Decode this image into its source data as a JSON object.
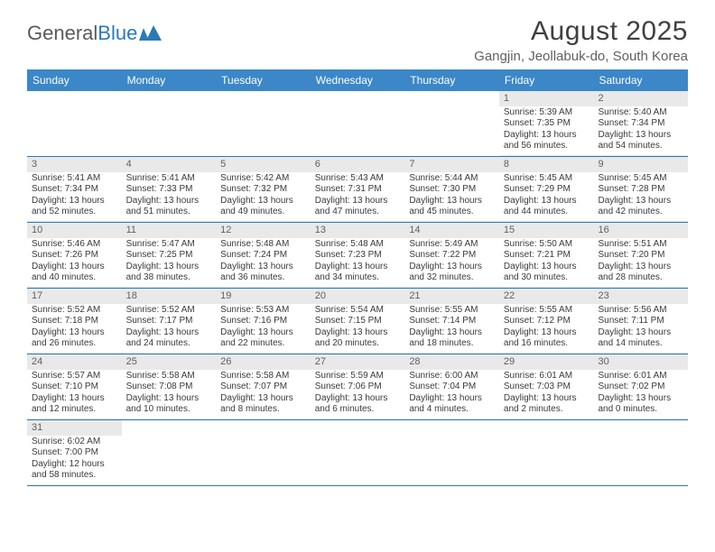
{
  "logo": {
    "text1": "General",
    "text2": "Blue"
  },
  "title": "August 2025",
  "location": "Gangjin, Jeollabuk-do, South Korea",
  "colors": {
    "header_bg": "#3b87c8",
    "header_text": "#ffffff",
    "border": "#2a7ab9",
    "shaded": "#e9e9e9",
    "text": "#3a3a3a"
  },
  "dayNames": [
    "Sunday",
    "Monday",
    "Tuesday",
    "Wednesday",
    "Thursday",
    "Friday",
    "Saturday"
  ],
  "weeks": [
    [
      null,
      null,
      null,
      null,
      null,
      {
        "n": "1",
        "sr": "Sunrise: 5:39 AM",
        "ss": "Sunset: 7:35 PM",
        "d1": "Daylight: 13 hours",
        "d2": "and 56 minutes."
      },
      {
        "n": "2",
        "sr": "Sunrise: 5:40 AM",
        "ss": "Sunset: 7:34 PM",
        "d1": "Daylight: 13 hours",
        "d2": "and 54 minutes."
      }
    ],
    [
      {
        "n": "3",
        "sr": "Sunrise: 5:41 AM",
        "ss": "Sunset: 7:34 PM",
        "d1": "Daylight: 13 hours",
        "d2": "and 52 minutes."
      },
      {
        "n": "4",
        "sr": "Sunrise: 5:41 AM",
        "ss": "Sunset: 7:33 PM",
        "d1": "Daylight: 13 hours",
        "d2": "and 51 minutes."
      },
      {
        "n": "5",
        "sr": "Sunrise: 5:42 AM",
        "ss": "Sunset: 7:32 PM",
        "d1": "Daylight: 13 hours",
        "d2": "and 49 minutes."
      },
      {
        "n": "6",
        "sr": "Sunrise: 5:43 AM",
        "ss": "Sunset: 7:31 PM",
        "d1": "Daylight: 13 hours",
        "d2": "and 47 minutes."
      },
      {
        "n": "7",
        "sr": "Sunrise: 5:44 AM",
        "ss": "Sunset: 7:30 PM",
        "d1": "Daylight: 13 hours",
        "d2": "and 45 minutes."
      },
      {
        "n": "8",
        "sr": "Sunrise: 5:45 AM",
        "ss": "Sunset: 7:29 PM",
        "d1": "Daylight: 13 hours",
        "d2": "and 44 minutes."
      },
      {
        "n": "9",
        "sr": "Sunrise: 5:45 AM",
        "ss": "Sunset: 7:28 PM",
        "d1": "Daylight: 13 hours",
        "d2": "and 42 minutes."
      }
    ],
    [
      {
        "n": "10",
        "sr": "Sunrise: 5:46 AM",
        "ss": "Sunset: 7:26 PM",
        "d1": "Daylight: 13 hours",
        "d2": "and 40 minutes."
      },
      {
        "n": "11",
        "sr": "Sunrise: 5:47 AM",
        "ss": "Sunset: 7:25 PM",
        "d1": "Daylight: 13 hours",
        "d2": "and 38 minutes."
      },
      {
        "n": "12",
        "sr": "Sunrise: 5:48 AM",
        "ss": "Sunset: 7:24 PM",
        "d1": "Daylight: 13 hours",
        "d2": "and 36 minutes."
      },
      {
        "n": "13",
        "sr": "Sunrise: 5:48 AM",
        "ss": "Sunset: 7:23 PM",
        "d1": "Daylight: 13 hours",
        "d2": "and 34 minutes."
      },
      {
        "n": "14",
        "sr": "Sunrise: 5:49 AM",
        "ss": "Sunset: 7:22 PM",
        "d1": "Daylight: 13 hours",
        "d2": "and 32 minutes."
      },
      {
        "n": "15",
        "sr": "Sunrise: 5:50 AM",
        "ss": "Sunset: 7:21 PM",
        "d1": "Daylight: 13 hours",
        "d2": "and 30 minutes."
      },
      {
        "n": "16",
        "sr": "Sunrise: 5:51 AM",
        "ss": "Sunset: 7:20 PM",
        "d1": "Daylight: 13 hours",
        "d2": "and 28 minutes."
      }
    ],
    [
      {
        "n": "17",
        "sr": "Sunrise: 5:52 AM",
        "ss": "Sunset: 7:18 PM",
        "d1": "Daylight: 13 hours",
        "d2": "and 26 minutes."
      },
      {
        "n": "18",
        "sr": "Sunrise: 5:52 AM",
        "ss": "Sunset: 7:17 PM",
        "d1": "Daylight: 13 hours",
        "d2": "and 24 minutes."
      },
      {
        "n": "19",
        "sr": "Sunrise: 5:53 AM",
        "ss": "Sunset: 7:16 PM",
        "d1": "Daylight: 13 hours",
        "d2": "and 22 minutes."
      },
      {
        "n": "20",
        "sr": "Sunrise: 5:54 AM",
        "ss": "Sunset: 7:15 PM",
        "d1": "Daylight: 13 hours",
        "d2": "and 20 minutes."
      },
      {
        "n": "21",
        "sr": "Sunrise: 5:55 AM",
        "ss": "Sunset: 7:14 PM",
        "d1": "Daylight: 13 hours",
        "d2": "and 18 minutes."
      },
      {
        "n": "22",
        "sr": "Sunrise: 5:55 AM",
        "ss": "Sunset: 7:12 PM",
        "d1": "Daylight: 13 hours",
        "d2": "and 16 minutes."
      },
      {
        "n": "23",
        "sr": "Sunrise: 5:56 AM",
        "ss": "Sunset: 7:11 PM",
        "d1": "Daylight: 13 hours",
        "d2": "and 14 minutes."
      }
    ],
    [
      {
        "n": "24",
        "sr": "Sunrise: 5:57 AM",
        "ss": "Sunset: 7:10 PM",
        "d1": "Daylight: 13 hours",
        "d2": "and 12 minutes."
      },
      {
        "n": "25",
        "sr": "Sunrise: 5:58 AM",
        "ss": "Sunset: 7:08 PM",
        "d1": "Daylight: 13 hours",
        "d2": "and 10 minutes."
      },
      {
        "n": "26",
        "sr": "Sunrise: 5:58 AM",
        "ss": "Sunset: 7:07 PM",
        "d1": "Daylight: 13 hours",
        "d2": "and 8 minutes."
      },
      {
        "n": "27",
        "sr": "Sunrise: 5:59 AM",
        "ss": "Sunset: 7:06 PM",
        "d1": "Daylight: 13 hours",
        "d2": "and 6 minutes."
      },
      {
        "n": "28",
        "sr": "Sunrise: 6:00 AM",
        "ss": "Sunset: 7:04 PM",
        "d1": "Daylight: 13 hours",
        "d2": "and 4 minutes."
      },
      {
        "n": "29",
        "sr": "Sunrise: 6:01 AM",
        "ss": "Sunset: 7:03 PM",
        "d1": "Daylight: 13 hours",
        "d2": "and 2 minutes."
      },
      {
        "n": "30",
        "sr": "Sunrise: 6:01 AM",
        "ss": "Sunset: 7:02 PM",
        "d1": "Daylight: 13 hours",
        "d2": "and 0 minutes."
      }
    ],
    [
      {
        "n": "31",
        "sr": "Sunrise: 6:02 AM",
        "ss": "Sunset: 7:00 PM",
        "d1": "Daylight: 12 hours",
        "d2": "and 58 minutes."
      },
      null,
      null,
      null,
      null,
      null,
      null
    ]
  ]
}
